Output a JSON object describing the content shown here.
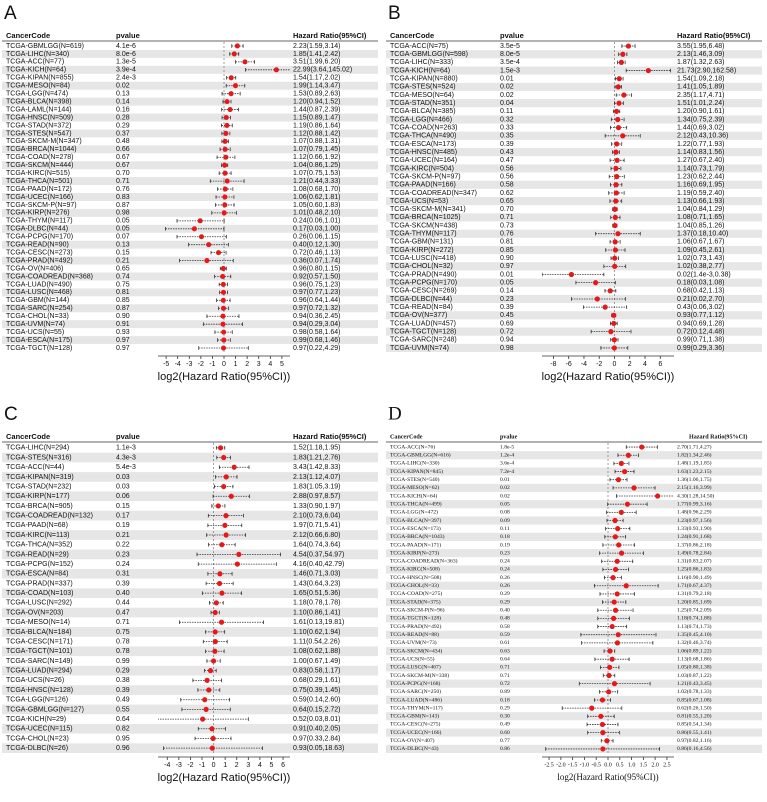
{
  "chart_data": [
    {
      "type": "forest",
      "panel": "A",
      "columns": [
        "CancerCode",
        "pvalue",
        "Hazard Ratio(95%CI)"
      ],
      "font": "sans",
      "color": "#e31a1c",
      "xscale": "log2",
      "x_label": "log2(Hazard Ratio(95%CI))",
      "xlim": [
        -5.7,
        5.7
      ],
      "xticks": [
        -5,
        -4,
        -3,
        -2,
        -1,
        0,
        1,
        2,
        3,
        4,
        5
      ],
      "categories": [
        "TCGA-GBMLGG(N=619)",
        "TCGA-LIHC(N=340)",
        "TCGA-ACC(N=77)",
        "TCGA-KICH(N=64)",
        "TCGA-KIPAN(N=855)",
        "TCGA-MESO(N=84)",
        "TCGA-LGG(N=474)",
        "TCGA-BLCA(N=398)",
        "TCGA-LAML(N=144)",
        "TCGA-HNSC(N=509)",
        "TCGA-STAD(N=372)",
        "TCGA-STES(N=547)",
        "TCGA-SKCM-M(N=347)",
        "TCGA-BRCA(N=1044)",
        "TCGA-COAD(N=278)",
        "TCGA-SKCM(N=444)",
        "TCGA-KIRC(N=515)",
        "TCGA-THCA(N=501)",
        "TCGA-PAAD(N=172)",
        "TCGA-UCEC(N=166)",
        "TCGA-SKCM-P(N=97)",
        "TCGA-KIRP(N=276)",
        "TCGA-THYM(N=117)",
        "TCGA-DLBC(N=44)",
        "TCGA-PCPG(N=170)",
        "TCGA-READ(N=90)",
        "TCGA-CESC(N=273)",
        "TCGA-PRAD(N=492)",
        "TCGA-OV(N=406)",
        "TCGA-COADREAD(N=368)",
        "TCGA-LUAD(N=490)",
        "TCGA-LUSC(N=468)",
        "TCGA-GBM(N=144)",
        "TCGA-SARC(N=254)",
        "TCGA-CHOL(N=33)",
        "TCGA-UVM(N=74)",
        "TCGA-UCS(N=55)",
        "TCGA-ESCA(N=175)",
        "TCGA-TGCT(N=128)"
      ],
      "pvalues": [
        "4.1e-6",
        "8.0e-6",
        "1.3e-5",
        "3.9e-4",
        "2.4e-3",
        "0.02",
        "0.13",
        "0.14",
        "0.16",
        "0.28",
        "0.29",
        "0.37",
        "0.48",
        "0.66",
        "0.67",
        "0.67",
        "0.70",
        "0.71",
        "0.76",
        "0.83",
        "0.87",
        "0.98",
        "0.05",
        "0.05",
        "0.07",
        "0.13",
        "0.15",
        "0.21",
        "0.65",
        "0.74",
        "0.75",
        "0.81",
        "0.85",
        "0.87",
        "0.90",
        "0.91",
        "0.93",
        "0.97",
        "0.97"
      ],
      "values": [
        2.23,
        1.85,
        3.51,
        22.99,
        1.54,
        1.99,
        1.53,
        1.2,
        1.44,
        1.15,
        1.19,
        1.12,
        1.07,
        1.07,
        1.12,
        1.04,
        1.07,
        1.21,
        1.08,
        1.06,
        1.05,
        1.01,
        0.24,
        0.17,
        0.26,
        0.4,
        0.72,
        0.36,
        0.96,
        0.92,
        0.96,
        0.97,
        0.96,
        0.97,
        0.94,
        0.94,
        0.98,
        0.99,
        0.97
      ],
      "lower": [
        1.59,
        1.41,
        1.99,
        3.64,
        1.17,
        1.14,
        0.89,
        0.94,
        0.87,
        0.89,
        0.86,
        0.88,
        0.88,
        0.79,
        0.66,
        0.86,
        0.75,
        0.44,
        0.68,
        0.62,
        0.6,
        0.48,
        0.06,
        0.03,
        0.06,
        0.12,
        0.46,
        0.07,
        0.8,
        0.57,
        0.75,
        0.77,
        0.64,
        0.72,
        0.36,
        0.29,
        0.58,
        0.68,
        0.22
      ],
      "upper": [
        3.14,
        2.42,
        6.2,
        145.02,
        2.02,
        3.47,
        2.63,
        1.52,
        2.39,
        1.47,
        1.64,
        1.42,
        1.31,
        1.45,
        1.92,
        1.25,
        1.53,
        3.33,
        1.7,
        1.81,
        1.83,
        2.1,
        1.01,
        1.0,
        1.15,
        1.3,
        1.13,
        1.74,
        1.15,
        1.5,
        1.23,
        1.23,
        1.44,
        1.32,
        2.45,
        3.04,
        1.64,
        1.46,
        4.29
      ],
      "value_labels": [
        "2.23(1.59,3.14)",
        "1.85(1.41,2.42)",
        "3.51(1.99,6.20)",
        "22.99(3.64,145.02)",
        "1.54(1.17,2.02)",
        "1.99(1.14,3.47)",
        "1.53(0.89,2.63)",
        "1.20(0.94,1.52)",
        "1.44(0.87,2.39)",
        "1.15(0.89,1.47)",
        "1.19(0.86,1.64)",
        "1.12(0.88,1.42)",
        "1.07(0.88,1.31)",
        "1.07(0.79,1.45)",
        "1.12(0.66,1.92)",
        "1.04(0.86,1.25)",
        "1.07(0.75,1.53)",
        "1.21(0.44,3.33)",
        "1.08(0.68,1.70)",
        "1.06(0.62,1.81)",
        "1.05(0.60,1.83)",
        "1.01(0.48,2.10)",
        "0.24(0.06,1.01)",
        "0.17(0.03,1.00)",
        "0.26(0.06,1.15)",
        "0.40(0.12,1.30)",
        "0.72(0.46,1.13)",
        "0.36(0.07,1.74)",
        "0.96(0.80,1.15)",
        "0.92(0.57,1.50)",
        "0.96(0.75,1.23)",
        "0.97(0.77,1.23)",
        "0.96(0.64,1.44)",
        "0.97(0.72,1.32)",
        "0.94(0.36,2.45)",
        "0.94(0.29,3.04)",
        "0.98(0.58,1.64)",
        "0.99(0.68,1.46)",
        "0.97(0.22,4.29)"
      ]
    },
    {
      "type": "forest",
      "panel": "B",
      "columns": [
        "CancerCode",
        "pvalue",
        "Hazard Ratio(95%CI)"
      ],
      "font": "sans",
      "color": "#e31a1c",
      "xscale": "log2",
      "x_label": "log2(Hazard Ratio(95%CI))",
      "xlim": [
        -9.5,
        7.8
      ],
      "xticks": [
        -8,
        -6,
        -4,
        -2,
        0,
        2,
        4,
        6
      ],
      "categories": [
        "TCGA-ACC(N=75)",
        "TCGA-GBMLGG(N=598)",
        "TCGA-LIHC(N=333)",
        "TCGA-KICH(N=64)",
        "TCGA-KIPAN(N=880)",
        "TCGA-STES(N=524)",
        "TCGA-MESO(N=64)",
        "TCGA-STAD(N=351)",
        "TCGA-BLCA(N=385)",
        "TCGA-LGG(N=466)",
        "TCGA-COAD(N=263)",
        "TCGA-THCA(N=490)",
        "TCGA-ESCA(N=173)",
        "TCGA-HNSC(N=485)",
        "TCGA-UCEC(N=164)",
        "TCGA-KIRC(N=504)",
        "TCGA-SKCM-P(N=97)",
        "TCGA-PAAD(N=166)",
        "TCGA-COADREAD(N=347)",
        "TCGA-UCS(N=53)",
        "TCGA-SKCM-M(N=341)",
        "TCGA-BRCA(N=1025)",
        "TCGA-SKCM(N=438)",
        "TCGA-THYM(N=117)",
        "TCGA-GBM(N=131)",
        "TCGA-KIRP(N=272)",
        "TCGA-LUSC(N=418)",
        "TCGA-CHOL(N=32)",
        "TCGA-PRAD(N=490)",
        "TCGA-PCPG(N=170)",
        "TCGA-CESC(N=269)",
        "TCGA-DLBC(N=44)",
        "TCGA-READ(N=84)",
        "TCGA-OV(N=377)",
        "TCGA-LUAD(N=457)",
        "TCGA-TGCT(N=128)",
        "TCGA-SARC(N=248)",
        "TCGA-UVM(N=74)"
      ],
      "pvalues": [
        "3.5e-5",
        "8.0e-5",
        "3.5e-4",
        "1.5e-3",
        "0.01",
        "0.02",
        "0.02",
        "0.04",
        "0.11",
        "0.32",
        "0.33",
        "0.35",
        "0.39",
        "0.43",
        "0.47",
        "0.56",
        "0.56",
        "0.58",
        "0.62",
        "0.65",
        "0.70",
        "0.71",
        "0.73",
        "0.76",
        "0.81",
        "0.85",
        "0.90",
        "0.97",
        "0.01",
        "0.05",
        "0.14",
        "0.23",
        "0.39",
        "0.45",
        "0.69",
        "0.72",
        "0.94",
        "0.98"
      ],
      "values": [
        3.55,
        2.13,
        1.87,
        21.73,
        1.54,
        1.41,
        2.35,
        1.51,
        1.2,
        1.34,
        1.44,
        2.12,
        1.22,
        1.14,
        1.27,
        1.14,
        1.23,
        1.16,
        1.19,
        1.13,
        1.04,
        1.08,
        1.04,
        1.37,
        1.06,
        1.09,
        1.02,
        1.02,
        0.02,
        0.18,
        0.68,
        0.21,
        0.43,
        0.93,
        0.94,
        0.72,
        0.99,
        0.99
      ],
      "lower": [
        1.95,
        1.46,
        1.32,
        2.9,
        1.09,
        1.05,
        1.17,
        1.01,
        0.9,
        0.75,
        0.69,
        0.43,
        0.77,
        0.83,
        0.67,
        0.73,
        0.62,
        0.69,
        0.59,
        0.66,
        0.84,
        0.71,
        0.85,
        0.18,
        0.67,
        0.45,
        0.73,
        0.38,
        0.0014,
        0.03,
        0.42,
        0.02,
        0.06,
        0.77,
        0.69,
        0.12,
        0.71,
        0.29
      ],
      "upper": [
        6.48,
        3.09,
        2.63,
        162.58,
        2.18,
        1.89,
        4.71,
        2.24,
        1.61,
        2.39,
        3.02,
        10.36,
        1.93,
        1.56,
        2.4,
        1.79,
        2.44,
        1.95,
        2.4,
        1.93,
        1.29,
        1.65,
        1.26,
        10.4,
        1.67,
        2.61,
        1.43,
        2.77,
        0.38,
        1.08,
        1.13,
        2.7,
        3.02,
        1.12,
        1.28,
        4.48,
        1.38,
        3.36
      ],
      "value_labels": [
        "3.55(1.95,6.48)",
        "2.13(1.46,3.09)",
        "1.87(1.32,2.63)",
        "21.73(2.90,162.58)",
        "1.54(1.09,2.18)",
        "1.41(1.05,1.89)",
        "2.35(1.17,4.71)",
        "1.51(1.01,2.24)",
        "1.20(0.90,1.61)",
        "1.34(0.75,2.39)",
        "1.44(0.69,3.02)",
        "2.12(0.43,10.36)",
        "1.22(0.77,1.93)",
        "1.14(0.83,1.56)",
        "1.27(0.67,2.40)",
        "1.14(0.73,1.79)",
        "1.23(0.62,2.44)",
        "1.16(0.69,1.95)",
        "1.19(0.59,2.40)",
        "1.13(0.66,1.93)",
        "1.04(0.84,1.29)",
        "1.08(0.71,1.65)",
        "1.04(0.85,1.26)",
        "1.37(0.18,10.40)",
        "1.06(0.67,1.67)",
        "1.09(0.45,2.61)",
        "1.02(0.73,1.43)",
        "1.02(0.38,2.77)",
        "0.02(1.4e-3,0.38)",
        "0.18(0.03,1.08)",
        "0.68(0.42,1.13)",
        "0.21(0.02,2.70)",
        "0.43(0.06,3.02)",
        "0.93(0.77,1.12)",
        "0.94(0.69,1.28)",
        "0.72(0.12,4.48)",
        "0.99(0.71,1.38)",
        "0.99(0.29,3.36)"
      ]
    },
    {
      "type": "forest",
      "panel": "C",
      "columns": [
        "CancerCode",
        "pvalue",
        "Hazard Ratio(95%CI)"
      ],
      "font": "sans",
      "color": "#e31a1c",
      "xscale": "log2",
      "x_label": "log2(Hazard Ratio(95%CI))",
      "xlim": [
        -4.8,
        6.6
      ],
      "xticks": [
        -4,
        -3,
        -2,
        -1,
        0,
        1,
        2,
        3,
        4,
        5,
        6
      ],
      "categories": [
        "TCGA-LIHC(N=294)",
        "TCGA-STES(N=316)",
        "TCGA-ACC(N=44)",
        "TCGA-KIPAN(N=319)",
        "TCGA-STAD(N=232)",
        "TCGA-KIRP(N=177)",
        "TCGA-BRCA(N=905)",
        "TCGA-COADREAD(N=132)",
        "TCGA-PAAD(N=68)",
        "TCGA-KIRC(N=113)",
        "TCGA-THCA(N=352)",
        "TCGA-READ(N=29)",
        "TCGA-PCPG(N=152)",
        "TCGA-ESCA(N=84)",
        "TCGA-PRAD(N=337)",
        "TCGA-COAD(N=103)",
        "TCGA-LUSC(N=292)",
        "TCGA-OV(N=203)",
        "TCGA-MESO(N=14)",
        "TCGA-BLCA(N=184)",
        "TCGA-CESC(N=171)",
        "TCGA-TGCT(N=101)",
        "TCGA-SARC(N=149)",
        "TCGA-LUAD(N=294)",
        "TCGA-UCS(N=26)",
        "TCGA-HNSC(N=128)",
        "TCGA-LGG(N=126)",
        "TCGA-GBMLGG(N=127)",
        "TCGA-KICH(N=29)",
        "TCGA-UCEC(N=115)",
        "TCGA-CHOL(N=23)",
        "TCGA-DLBC(N=26)"
      ],
      "pvalues": [
        "1.1e-3",
        "4.3e-3",
        "5.4e-3",
        "0.03",
        "0.03",
        "0.06",
        "0.15",
        "0.17",
        "0.19",
        "0.21",
        "0.22",
        "0.23",
        "0.24",
        "0.31",
        "0.39",
        "0.40",
        "0.44",
        "0.47",
        "0.71",
        "0.75",
        "0.78",
        "0.78",
        "0.99",
        "0.29",
        "0.38",
        "0.39",
        "0.49",
        "0.55",
        "0.64",
        "0.82",
        "0.95",
        "0.96"
      ],
      "values": [
        1.52,
        1.83,
        3.43,
        2.13,
        1.83,
        2.88,
        1.33,
        2.1,
        1.97,
        2.12,
        1.64,
        4.54,
        4.16,
        1.46,
        1.43,
        1.65,
        1.18,
        1.1,
        1.61,
        1.1,
        1.11,
        1.08,
        1.0,
        0.83,
        0.68,
        0.75,
        0.59,
        0.64,
        0.52,
        0.91,
        0.97,
        0.93
      ],
      "lower": [
        1.18,
        1.21,
        1.42,
        1.12,
        1.05,
        0.97,
        0.9,
        0.73,
        0.71,
        0.66,
        0.74,
        0.37,
        0.4,
        0.71,
        0.64,
        0.51,
        0.78,
        0.86,
        0.13,
        0.62,
        0.54,
        0.62,
        0.67,
        0.58,
        0.29,
        0.39,
        0.14,
        0.15,
        0.03,
        0.4,
        0.33,
        0.05
      ],
      "upper": [
        1.95,
        2.76,
        8.33,
        4.07,
        3.19,
        8.57,
        1.97,
        6.04,
        5.41,
        6.8,
        3.64,
        54.97,
        42.79,
        3.03,
        3.23,
        5.36,
        1.78,
        1.41,
        19.81,
        1.94,
        2.26,
        1.88,
        1.49,
        1.17,
        1.61,
        1.45,
        2.6,
        2.72,
        8.01,
        2.05,
        2.84,
        18.63
      ],
      "value_labels": [
        "1.52(1.18,1.95)",
        "1.83(1.21,2.76)",
        "3.43(1.42,8.33)",
        "2.13(1.12,4.07)",
        "1.83(1.05,3.19)",
        "2.88(0.97,8.57)",
        "1.33(0.90,1.97)",
        "2.10(0.73,6.04)",
        "1.97(0.71,5.41)",
        "2.12(0.66,6.80)",
        "1.64(0.74,3.64)",
        "4.54(0.37,54.97)",
        "4.16(0.40,42.79)",
        "1.46(0.71,3.03)",
        "1.43(0.64,3.23)",
        "1.65(0.51,5.36)",
        "1.18(0.78,1.78)",
        "1.10(0.86,1.41)",
        "1.61(0.13,19.81)",
        "1.10(0.62,1.94)",
        "1.11(0.54,2.26)",
        "1.08(0.62,1.88)",
        "1.00(0.67,1.49)",
        "0.83(0.58,1.17)",
        "0.68(0.29,1.61)",
        "0.75(0.39,1.45)",
        "0.59(0.14,2.60)",
        "0.64(0.15,2.72)",
        "0.52(0.03,8.01)",
        "0.91(0.40,2.05)",
        "0.97(0.33,2.84)",
        "0.93(0.05,18.63)"
      ]
    },
    {
      "type": "forest",
      "panel": "D",
      "columns": [
        "CancerCode",
        "pvalue",
        "Hazard Ratio(95%CI)"
      ],
      "font": "serif",
      "color": "#e31a1c",
      "xscale": "log2",
      "x_label": "log2(Hazard Ratio(95%CI))",
      "xlim": [
        -2.8,
        2.8
      ],
      "xticks": [
        -2.5,
        {
          "value": -2,
          "label": "-2.0"
        },
        -1.5,
        {
          "value": -1,
          "label": "-1.0"
        },
        -0.5,
        {
          "value": 0,
          "label": "0.0"
        },
        0.5,
        {
          "value": 1,
          "label": "1.0"
        },
        1.5,
        {
          "value": 2,
          "label": "2.0"
        },
        2.5
      ],
      "categories": [
        "TCGA-ACC(N=76)",
        "TCGA-GBMLGG(N=616)",
        "TCGA-LIHC(N=330)",
        "TCGA-KIPAN(N=845)",
        "TCGA-STES(N=540)",
        "TCGA-MESO(N=62)",
        "TCGA-KICH(N=64)",
        "TCGA-THCA(N=499)",
        "TCGA-LGG(N=472)",
        "TCGA-BLCA(N=397)",
        "TCGA-ESCA(N=173)",
        "TCGA-BRCA(N=1043)",
        "TCGA-PAAD(N=171)",
        "TCGA-KIRP(N=273)",
        "TCGA-COADREAD(N=363)",
        "TCGA-KIRC(N=508)",
        "TCGA-HNSC(N=508)",
        "TCGA-CHOL(N=33)",
        "TCGA-COAD(N=275)",
        "TCGA-STAD(N=375)",
        "TCGA-SKCM-P(N=96)",
        "TCGA-TGCT(N=128)",
        "TCGA-PRAD(N=492)",
        "TCGA-READ(N=88)",
        "TCGA-UVM(N=73)",
        "TCGA-SKCM(N=434)",
        "TCGA-UCS(N=55)",
        "TCGA-LUSC(N=467)",
        "TCGA-SKCM-M(N=338)",
        "TCGA-PCPG(N=168)",
        "TCGA-SARC(N=250)",
        "TCGA-LUAD(N=486)",
        "TCGA-THYM(N=117)",
        "TCGA-GBM(N=143)",
        "TCGA-CESC(N=275)",
        "TCGA-UCEC(N=166)",
        "TCGA-OV(N=407)",
        "TCGA-DLBC(N=43)"
      ],
      "pvalues": [
        "1.8e-5",
        "1.2e-4",
        "3.6e-4",
        "7.2e-4",
        "0.01",
        "0.02",
        "0.02",
        "0.05",
        "0.08",
        "0.09",
        "0.11",
        "0.18",
        "0.19",
        "0.23",
        "0.24",
        "0.24",
        "0.26",
        "0.26",
        "0.29",
        "0.29",
        "0.40",
        "0.48",
        "0.58",
        "0.59",
        "0.61",
        "0.63",
        "0.64",
        "0.71",
        "0.71",
        "0.72",
        "0.89",
        "0.18",
        "0.29",
        "0.30",
        "0.49",
        "0.60",
        "0.77",
        "0.86"
      ],
      "values": [
        2.7,
        1.82,
        1.48,
        1.63,
        1.36,
        2.15,
        4.3,
        1.77,
        1.48,
        1.23,
        1.33,
        1.24,
        1.37,
        1.49,
        1.31,
        1.25,
        1.16,
        1.71,
        1.31,
        1.2,
        1.25,
        1.18,
        1.13,
        1.35,
        1.32,
        1.06,
        1.13,
        1.05,
        1.03,
        1.21,
        1.02,
        0.85,
        0.62,
        0.81,
        0.85,
        0.86,
        0.97,
        0.86
      ],
      "lower": [
        1.71,
        1.34,
        1.19,
        1.23,
        1.06,
        1.16,
        1.28,
        0.99,
        0.96,
        0.97,
        0.93,
        0.91,
        0.86,
        0.78,
        0.83,
        0.86,
        0.9,
        0.67,
        0.79,
        0.85,
        0.74,
        0.74,
        0.74,
        0.45,
        0.46,
        0.89,
        0.68,
        0.8,
        0.87,
        0.43,
        0.78,
        0.67,
        0.26,
        0.55,
        0.54,
        0.55,
        0.82,
        0.16
      ],
      "upper": [
        4.27,
        2.46,
        1.85,
        2.15,
        1.75,
        3.99,
        14.5,
        3.16,
        2.29,
        1.56,
        1.9,
        1.68,
        2.18,
        2.84,
        2.07,
        1.83,
        1.49,
        4.37,
        2.18,
        1.69,
        2.09,
        1.88,
        1.73,
        4.1,
        3.74,
        1.22,
        1.86,
        1.38,
        1.22,
        3.45,
        1.33,
        1.08,
        1.5,
        1.2,
        1.34,
        1.41,
        1.16,
        4.56
      ],
      "value_labels": [
        "2.70(1.71,4.27)",
        "1.82(1.34,2.46)",
        "1.48(1.19,1.85)",
        "1.63(1.23,2.15)",
        "1.36(1.06,1.75)",
        "2.15(1.16,3.99)",
        "4.30(1.28,14.50)",
        "1.77(0.99,3.16)",
        "1.48(0.96,2.29)",
        "1.23(0.97,1.56)",
        "1.33(0.93,1.90)",
        "1.24(0.91,1.68)",
        "1.37(0.86,2.18)",
        "1.49(0.78,2.84)",
        "1.31(0.83,2.07)",
        "1.25(0.86,1.83)",
        "1.16(0.90,1.49)",
        "1.71(0.67,4.37)",
        "1.31(0.79,2.18)",
        "1.20(0.85,1.69)",
        "1.25(0.74,2.09)",
        "1.18(0.74,1.88)",
        "1.13(0.74,1.73)",
        "1.35(0.45,4.10)",
        "1.32(0.46,3.74)",
        "1.06(0.89,1.22)",
        "1.13(0.68,1.86)",
        "1.05(0.80,1.38)",
        "1.03(0.87,1.22)",
        "1.21(0.43,3.45)",
        "1.02(0.78,1.33)",
        "0.85(0.67,1.08)",
        "0.62(0.26,1.50)",
        "0.81(0.55,1.20)",
        "0.85(0.54,1.34)",
        "0.86(0.55,1.41)",
        "0.97(0.82,1.16)",
        "0.86(0.16,4.56)"
      ]
    }
  ]
}
